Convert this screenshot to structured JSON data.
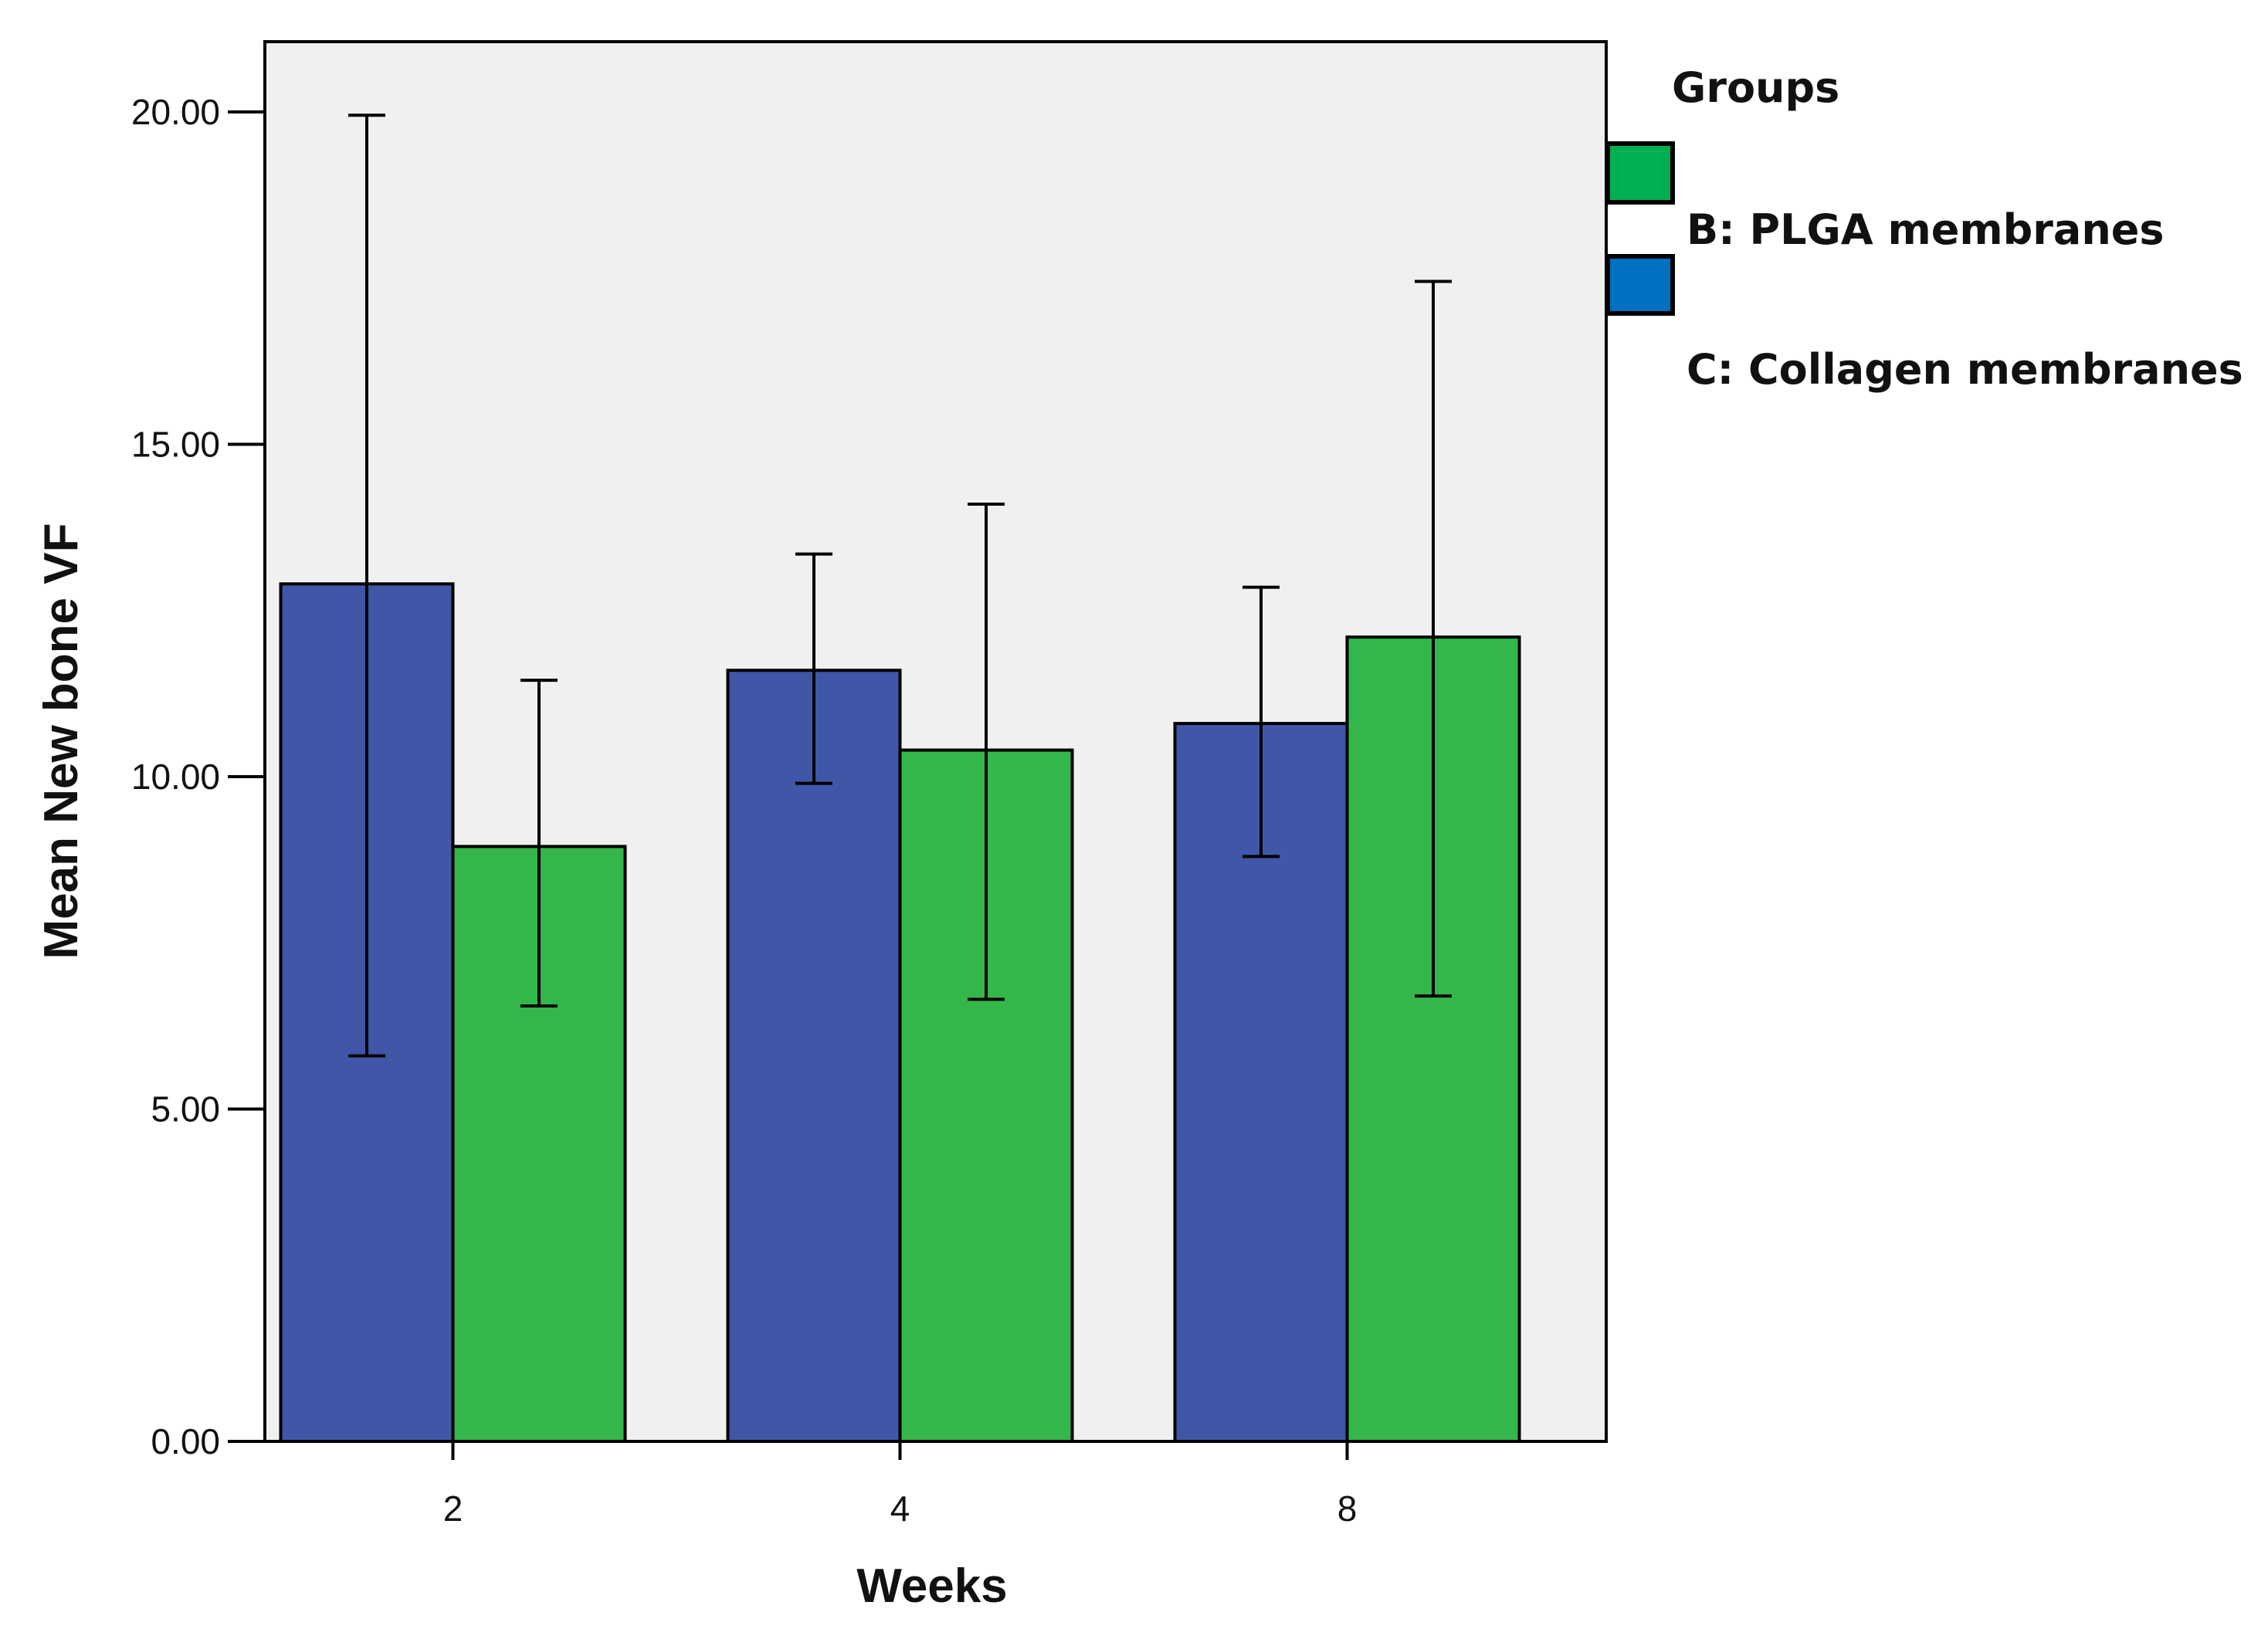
{
  "chart_data": {
    "type": "bar",
    "title": "",
    "xlabel": "Weeks",
    "ylabel": "Mean New bone VF",
    "categories": [
      "2",
      "4",
      "8"
    ],
    "ylim": [
      0,
      21
    ],
    "yticks": [
      0,
      5,
      10,
      15,
      20
    ],
    "ytick_labels": [
      "0.00",
      "5.00",
      "10.00",
      "15.00",
      "20.00"
    ],
    "series": [
      {
        "name": "C: Collagen membranes",
        "color": "#4057A8",
        "values": [
          12.9,
          11.6,
          10.8
        ],
        "err_low": [
          5.8,
          9.9,
          8.8
        ],
        "err_high": [
          19.95,
          13.35,
          12.85
        ]
      },
      {
        "name": "B: PLGA membranes",
        "color": "#33B74A",
        "values": [
          8.95,
          10.4,
          12.1
        ],
        "err_low": [
          6.55,
          6.65,
          6.7
        ],
        "err_high": [
          11.45,
          14.1,
          17.45
        ]
      }
    ],
    "legend": {
      "title": "Groups",
      "position": "right",
      "items": [
        {
          "label": "B: PLGA membranes",
          "color": "#00B050"
        },
        {
          "label": "C: Collagen membranes",
          "color": "#0070C0"
        }
      ]
    },
    "plot_background": "#F0F0F0"
  }
}
